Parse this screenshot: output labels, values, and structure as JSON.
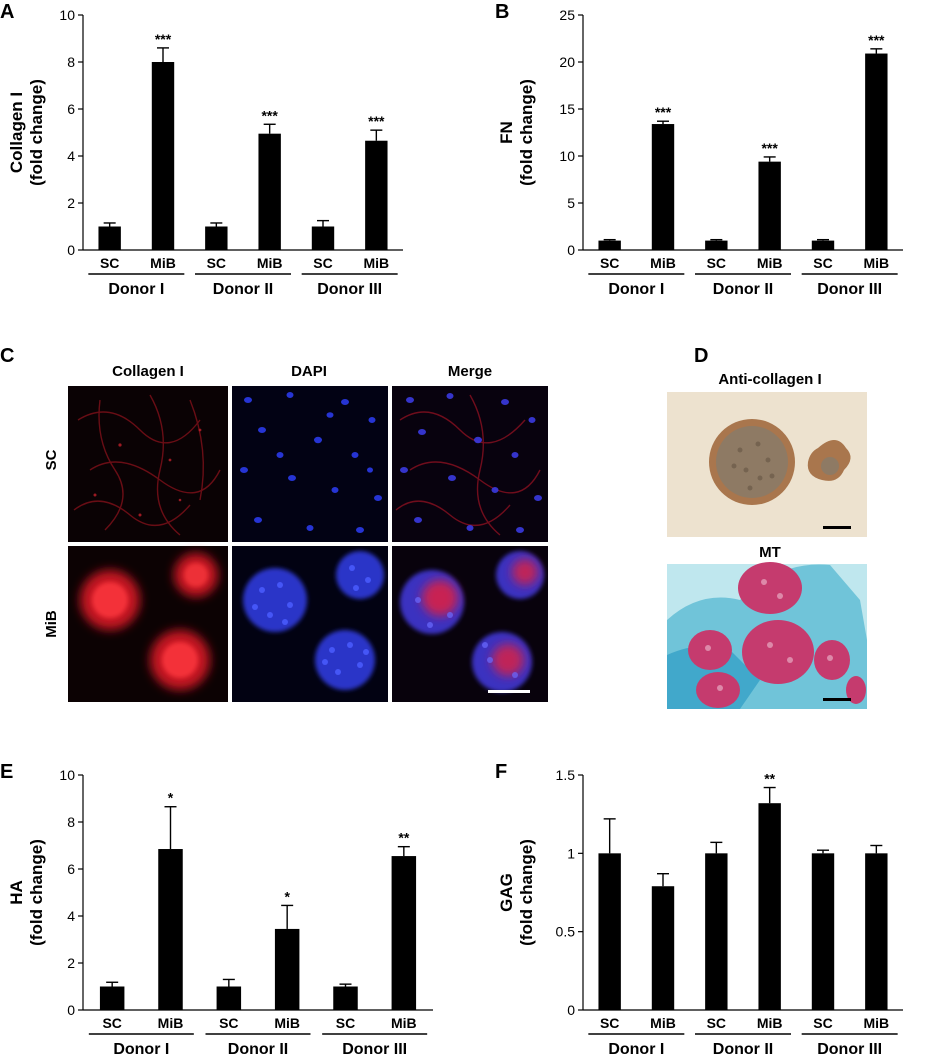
{
  "charts": [
    {
      "id": "A",
      "panel_label": "A",
      "ylabel_lines": [
        "Collagen I",
        "(fold change)"
      ],
      "ylim": [
        0,
        10
      ],
      "yticks": [
        0,
        2,
        4,
        6,
        8,
        10
      ],
      "tick_labels": [
        "0",
        "2",
        "4",
        "6",
        "8",
        "10"
      ],
      "categories": [
        "SC",
        "MiB",
        "SC",
        "MiB",
        "SC",
        "MiB"
      ],
      "values": [
        1.0,
        8.0,
        1.0,
        4.95,
        1.0,
        4.65
      ],
      "errors": [
        0.15,
        0.6,
        0.15,
        0.4,
        0.25,
        0.45
      ],
      "significance": [
        "",
        "***",
        "",
        "***",
        "",
        "***"
      ],
      "groups": [
        "Donor I",
        "Donor II",
        "Donor III"
      ]
    },
    {
      "id": "B",
      "panel_label": "B",
      "ylabel_lines": [
        "FN",
        "(fold change)"
      ],
      "ylim": [
        0,
        25
      ],
      "yticks": [
        0,
        5,
        10,
        15,
        20,
        25
      ],
      "tick_labels": [
        "0",
        "5",
        "10",
        "15",
        "20",
        "25"
      ],
      "categories": [
        "SC",
        "MiB",
        "SC",
        "MiB",
        "SC",
        "MiB"
      ],
      "values": [
        1.0,
        13.4,
        1.0,
        9.4,
        1.0,
        20.9
      ],
      "errors": [
        0.1,
        0.3,
        0.1,
        0.5,
        0.1,
        0.5
      ],
      "significance": [
        "",
        "***",
        "",
        "***",
        "",
        "***"
      ],
      "groups": [
        "Donor I",
        "Donor II",
        "Donor III"
      ]
    },
    {
      "id": "E",
      "panel_label": "E",
      "ylabel_lines": [
        "HA",
        "(fold change)"
      ],
      "ylim": [
        0,
        10
      ],
      "yticks": [
        0,
        2,
        4,
        6,
        8,
        10
      ],
      "tick_labels": [
        "0",
        "2",
        "4",
        "6",
        "8",
        "10"
      ],
      "categories": [
        "SC",
        "MiB",
        "SC",
        "MiB",
        "SC",
        "MiB"
      ],
      "values": [
        1.0,
        6.85,
        1.0,
        3.45,
        1.0,
        6.55
      ],
      "errors": [
        0.18,
        1.8,
        0.3,
        1.0,
        0.1,
        0.4
      ],
      "significance": [
        "",
        "*",
        "",
        "*",
        "",
        "**"
      ],
      "groups": [
        "Donor I",
        "Donor II",
        "Donor III"
      ]
    },
    {
      "id": "F",
      "panel_label": "F",
      "ylabel_lines": [
        "GAG",
        "(fold change)"
      ],
      "ylim": [
        0,
        1.5
      ],
      "yticks": [
        0,
        0.5,
        1,
        1.5
      ],
      "tick_labels": [
        "0",
        "0.5",
        "1",
        "1.5"
      ],
      "categories": [
        "SC",
        "MiB",
        "SC",
        "MiB",
        "SC",
        "MiB"
      ],
      "values": [
        1.0,
        0.79,
        1.0,
        1.32,
        1.0,
        1.0
      ],
      "errors": [
        0.22,
        0.08,
        0.07,
        0.1,
        0.02,
        0.05
      ],
      "significance": [
        "",
        "",
        "",
        "**",
        "",
        ""
      ],
      "groups": [
        "Donor I",
        "Donor II",
        "Donor III"
      ]
    }
  ],
  "chart_data": [
    {
      "type": "bar",
      "panel": "A",
      "ylabel": "Collagen I (fold change)",
      "ylim": [
        0,
        10
      ],
      "categories": [
        "SC",
        "MiB",
        "SC",
        "MiB",
        "SC",
        "MiB"
      ],
      "series": [
        {
          "values": [
            1.0,
            8.0,
            1.0,
            4.95,
            1.0,
            4.65
          ],
          "errors": [
            0.15,
            0.6,
            0.15,
            0.4,
            0.25,
            0.45
          ]
        }
      ],
      "groups": [
        "Donor I",
        "Donor II",
        "Donor III"
      ]
    },
    {
      "type": "bar",
      "panel": "B",
      "ylabel": "FN (fold change)",
      "ylim": [
        0,
        25
      ],
      "categories": [
        "SC",
        "MiB",
        "SC",
        "MiB",
        "SC",
        "MiB"
      ],
      "series": [
        {
          "values": [
            1.0,
            13.4,
            1.0,
            9.4,
            1.0,
            20.9
          ],
          "errors": [
            0.1,
            0.3,
            0.1,
            0.5,
            0.1,
            0.5
          ]
        }
      ],
      "groups": [
        "Donor I",
        "Donor II",
        "Donor III"
      ]
    },
    {
      "type": "bar",
      "panel": "E",
      "ylabel": "HA (fold change)",
      "ylim": [
        0,
        10
      ],
      "categories": [
        "SC",
        "MiB",
        "SC",
        "MiB",
        "SC",
        "MiB"
      ],
      "series": [
        {
          "values": [
            1.0,
            6.85,
            1.0,
            3.45,
            1.0,
            6.55
          ],
          "errors": [
            0.18,
            1.8,
            0.3,
            1.0,
            0.1,
            0.4
          ]
        }
      ],
      "groups": [
        "Donor I",
        "Donor II",
        "Donor III"
      ]
    },
    {
      "type": "bar",
      "panel": "F",
      "ylabel": "GAG (fold change)",
      "ylim": [
        0,
        1.5
      ],
      "categories": [
        "SC",
        "MiB",
        "SC",
        "MiB",
        "SC",
        "MiB"
      ],
      "series": [
        {
          "values": [
            1.0,
            0.79,
            1.0,
            1.32,
            1.0,
            1.0
          ],
          "errors": [
            0.22,
            0.08,
            0.07,
            0.1,
            0.02,
            0.05
          ]
        }
      ],
      "groups": [
        "Donor I",
        "Donor II",
        "Donor III"
      ]
    }
  ],
  "panel_c": {
    "label": "C",
    "columns": [
      "Collagen I",
      "DAPI",
      "Merge"
    ],
    "rows": [
      "SC",
      "MiB"
    ]
  },
  "panel_d": {
    "label": "D",
    "top_title": "Anti-collagen I",
    "bottom_title": "MT"
  },
  "colors": {
    "bar": "#000000",
    "stain_red": "#e0202c",
    "stain_blue": "#2a36e0",
    "ihc_brown": "#9a6a44",
    "mt_blue": "#48b6d4",
    "mt_red": "#c83a6a"
  }
}
